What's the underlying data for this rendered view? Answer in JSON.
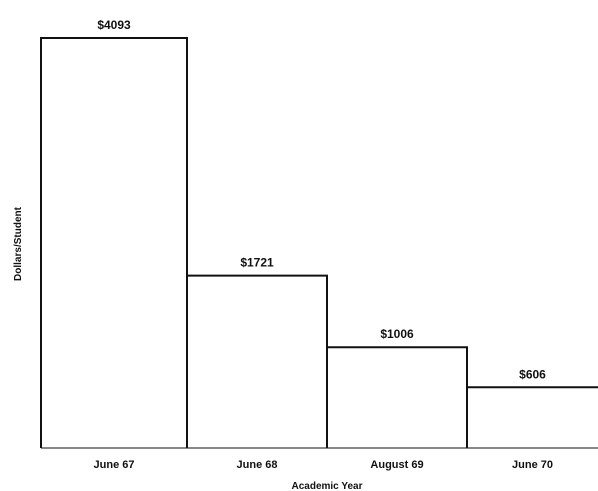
{
  "chart_data": {
    "type": "bar",
    "title": "",
    "xlabel": "Academic Year",
    "ylabel": "Dollars/Student",
    "categories": [
      "June 67",
      "June 68",
      "August 69",
      "June 70"
    ],
    "values": [
      4093,
      1721,
      1006,
      606
    ],
    "data_labels": [
      "$4093",
      "$1721",
      "$1006",
      "$606"
    ],
    "ylim": [
      0,
      4093
    ],
    "grid": false,
    "legend": "none",
    "colors": {
      "bar_stroke": "#111111",
      "bar_fill": "#ffffff",
      "background": "#ffffff"
    }
  }
}
